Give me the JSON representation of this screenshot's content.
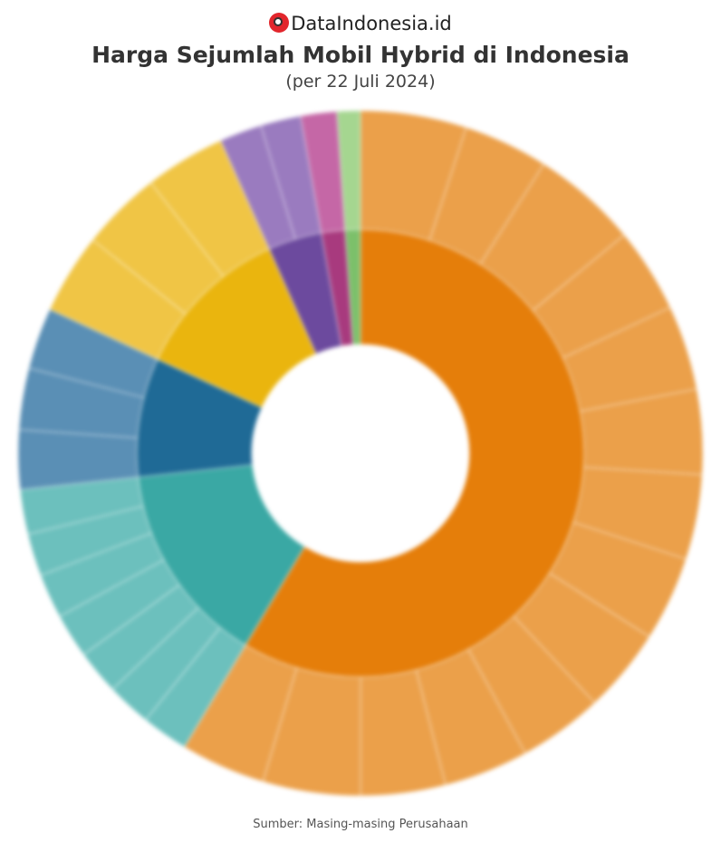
{
  "brand": {
    "name": "DataIndonesia.id",
    "logo_color": "#e2262c"
  },
  "chart_data": {
    "type": "sunburst",
    "title": "Harga Sejumlah Mobil Hybrid di Indonesia",
    "subtitle": "(per 22 Juli 2024)",
    "source": "Sumber: Masing-masing Perusahaan",
    "unit": "percent share of total",
    "segments": [
      {
        "value": 58.6,
        "color": "#e57e0a",
        "outer_color": "#eba04a",
        "children": [
          5,
          4,
          5,
          4,
          4,
          4,
          4,
          4,
          4,
          4,
          4,
          4,
          4.6,
          4
        ]
      },
      {
        "value": 14.7,
        "color": "#3aa8a4",
        "outer_color": "#6cc0bd",
        "children": [
          2.2,
          2.1,
          2.1,
          2.1,
          2.1,
          2.0,
          2.1
        ]
      },
      {
        "value": 8.6,
        "color": "#1f6a96",
        "outer_color": "#5a8fb5",
        "children": [
          2.8,
          2.9,
          2.9
        ]
      },
      {
        "value": 11.4,
        "color": "#eab50e",
        "outer_color": "#f0c545",
        "children": [
          3.8,
          3.8,
          3.8
        ]
      },
      {
        "value": 3.9,
        "color": "#6c4a9e",
        "outer_color": "#9a7bbf",
        "children": [
          2.0,
          1.9
        ]
      },
      {
        "value": 1.7,
        "color": "#a83a7e",
        "outer_color": "#c567a6",
        "children": [
          1.7
        ]
      },
      {
        "value": 1.1,
        "color": "#7cc06a",
        "outer_color": "#a5d690",
        "children": [
          1.1
        ]
      }
    ]
  }
}
